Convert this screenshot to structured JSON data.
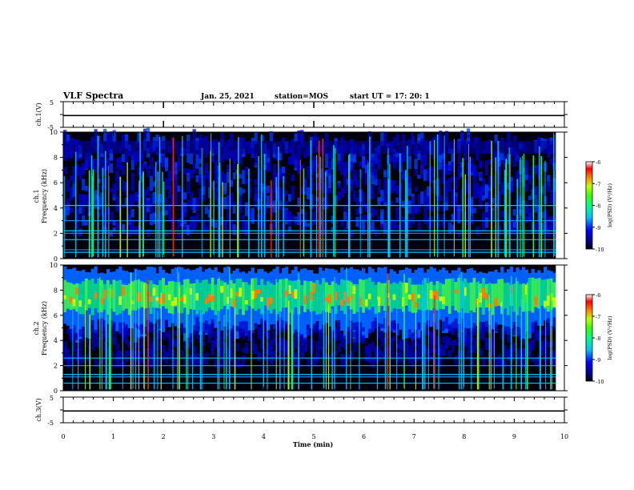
{
  "header": {
    "title": "VLF Spectra",
    "date": "Jan. 25, 2021",
    "station": "station=MOS",
    "start": "start  UT =   17: 20: 1"
  },
  "colorbar": {
    "label": "log(PSD) (V²/Hz)",
    "ticks": [
      "-6",
      "-7",
      "-8",
      "-9",
      "-10"
    ]
  },
  "chart_data": [
    {
      "type": "line",
      "panel": "ch1-waveform",
      "ylabel": "ch.1(V)",
      "y_ticks": [
        "5",
        "-5"
      ],
      "ylim": [
        -5,
        5
      ],
      "x": [
        0,
        10
      ],
      "values": [
        -0.4,
        -0.4
      ]
    },
    {
      "type": "heatmap",
      "panel": "ch1-spectrogram",
      "ylabel": "ch.1\nFrequency (kHz)",
      "y_ticks": [
        "0",
        "2",
        "4",
        "6",
        "8",
        "10"
      ],
      "ylim": [
        0,
        10
      ],
      "xlim": [
        0,
        10
      ],
      "colorscale": "log(PSD) -10 to -6",
      "data_end_min": 9.83
    },
    {
      "type": "heatmap",
      "panel": "ch2-spectrogram",
      "ylabel": "ch.2\nFrequency (kHz)",
      "y_ticks": [
        "0",
        "2",
        "4",
        "6",
        "8",
        "10"
      ],
      "ylim": [
        0,
        10
      ],
      "xlim": [
        0,
        10
      ],
      "colorscale": "log(PSD) -10 to -6",
      "data_end_min": 9.83
    },
    {
      "type": "line",
      "panel": "ch3-waveform",
      "ylabel": "ch.3(V)",
      "y_ticks": [
        "5",
        "-5"
      ],
      "ylim": [
        -5,
        5
      ],
      "x": [
        0,
        10
      ],
      "values": [
        -0.4,
        -0.4
      ]
    }
  ],
  "xaxis": {
    "label": "Time (min)",
    "ticks": [
      "0",
      "1",
      "2",
      "3",
      "4",
      "5",
      "6",
      "7",
      "8",
      "9",
      "10"
    ],
    "range": [
      0,
      10
    ]
  }
}
